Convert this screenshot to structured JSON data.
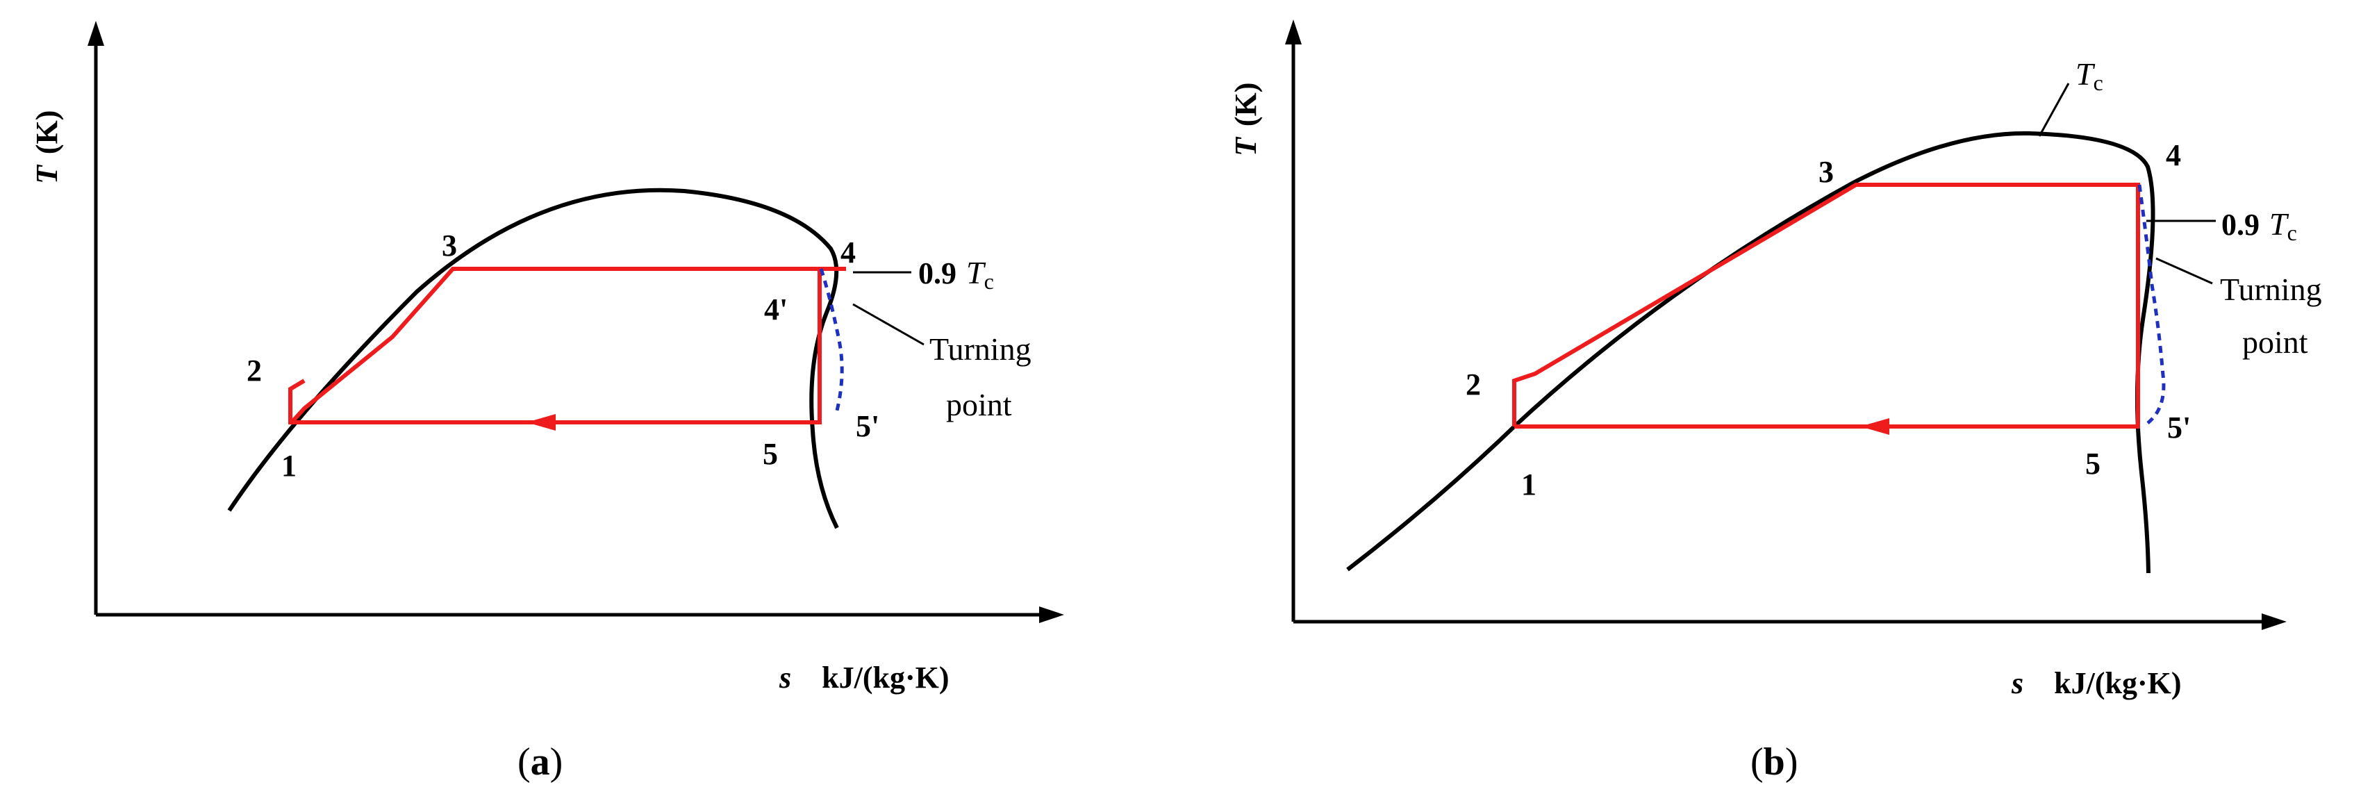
{
  "panels": [
    {
      "id": "a",
      "caption_open": "(",
      "caption_letter": "a",
      "caption_close": ")",
      "y_axis_symbol": "T",
      "y_axis_unit": "(K)",
      "x_axis_symbol": "s",
      "x_axis_unit": "kJ/(kg·K)",
      "points": {
        "p1": "1",
        "p2": "2",
        "p3": "3",
        "p4": "4",
        "p4p": "4'",
        "p5": "5",
        "p5p": "5'"
      },
      "annot_tc_prefix": "0.9",
      "annot_tc_T": "T",
      "annot_tc_sub": "c",
      "turning_1": "Turning",
      "turning_2": "point"
    },
    {
      "id": "b",
      "caption_open": "(",
      "caption_letter": "b",
      "caption_close": ")",
      "y_axis_symbol": "T",
      "y_axis_unit": "(K)",
      "x_axis_symbol": "s",
      "x_axis_unit": "kJ/(kg·K)",
      "points": {
        "p1": "1",
        "p2": "2",
        "p3": "3",
        "p4": "4",
        "p5": "5",
        "p5p": "5'"
      },
      "top_T": "T",
      "top_sub": "c",
      "annot_tc_prefix": "0.9",
      "annot_tc_T": "T",
      "annot_tc_sub": "c",
      "turning_1": "Turning",
      "turning_2": "point"
    }
  ],
  "colors": {
    "cycle": "#ee1c1c",
    "dashed": "#1f2fbf",
    "dome": "#000000"
  }
}
